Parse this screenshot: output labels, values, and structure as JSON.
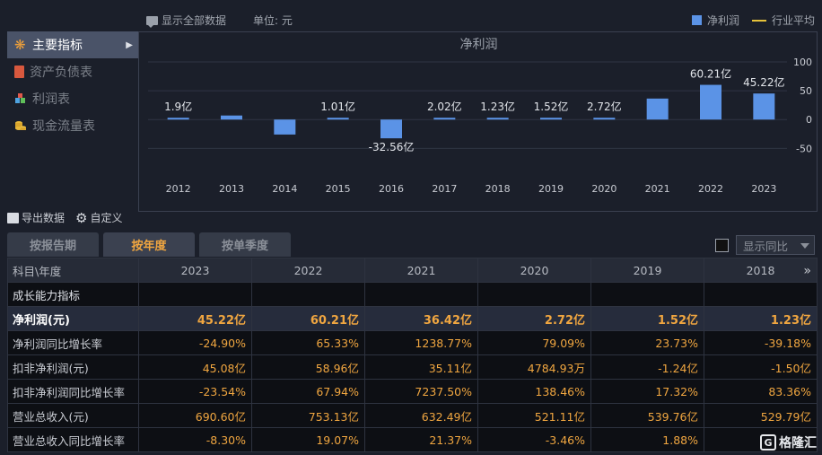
{
  "header": {
    "show_all_label": "显示全部数据",
    "unit_label": "单位: 元",
    "legend_bar": "净利润",
    "legend_line": "行业平均",
    "bar_color": "#5b93e6",
    "line_color": "#e6c23a"
  },
  "sidebar": {
    "items": [
      {
        "label": "主要指标",
        "icon": "flower-icon",
        "active": true
      },
      {
        "label": "资产负债表",
        "icon": "document-icon",
        "active": false
      },
      {
        "label": "利润表",
        "icon": "cubes-icon",
        "active": false
      },
      {
        "label": "现金流量表",
        "icon": "coins-icon",
        "active": false
      }
    ]
  },
  "chart_data": {
    "type": "bar",
    "title": "净利润",
    "categories": [
      "2012",
      "2013",
      "2014",
      "2015",
      "2016",
      "2017",
      "2018",
      "2019",
      "2020",
      "2021",
      "2022",
      "2023"
    ],
    "series": [
      {
        "name": "净利润",
        "values": [
          1.9,
          7.0,
          -26.0,
          1.01,
          -32.56,
          2.02,
          1.23,
          1.52,
          2.72,
          36.42,
          60.21,
          45.22
        ]
      }
    ],
    "data_labels": [
      "1.9亿",
      "",
      "",
      "1.01亿",
      "-32.56亿",
      "2.02亿",
      "1.23亿",
      "1.52亿",
      "2.72亿",
      "",
      "60.21亿",
      "45.22亿"
    ],
    "yticks": [
      100,
      50,
      0,
      -50
    ],
    "ylim": [
      -90,
      100
    ],
    "unit": "亿",
    "grid": true
  },
  "toolbar": {
    "export_label": "导出数据",
    "custom_label": "自定义"
  },
  "tabs": [
    {
      "label": "按报告期",
      "active": false
    },
    {
      "label": "按年度",
      "active": true
    },
    {
      "label": "按单季度",
      "active": false
    }
  ],
  "yoy": {
    "label": "显示同比"
  },
  "table": {
    "header_first": "科目\\年度",
    "years": [
      "2023",
      "2022",
      "2021",
      "2020",
      "2019",
      "2018"
    ],
    "section": "成长能力指标",
    "rows": [
      {
        "label": "净利润(元)",
        "values": [
          "45.22亿",
          "60.21亿",
          "36.42亿",
          "2.72亿",
          "1.52亿",
          "1.23亿"
        ],
        "highlight": true
      },
      {
        "label": "净利润同比增长率",
        "values": [
          "-24.90%",
          "65.33%",
          "1238.77%",
          "79.09%",
          "23.73%",
          "-39.18%"
        ]
      },
      {
        "label": "扣非净利润(元)",
        "values": [
          "45.08亿",
          "58.96亿",
          "35.11亿",
          "4784.93万",
          "-1.24亿",
          "-1.50亿"
        ]
      },
      {
        "label": "扣非净利润同比增长率",
        "values": [
          "-23.54%",
          "67.94%",
          "7237.50%",
          "138.46%",
          "17.32%",
          "83.36%"
        ]
      },
      {
        "label": "营业总收入(元)",
        "values": [
          "690.60亿",
          "753.13亿",
          "632.49亿",
          "521.11亿",
          "539.76亿",
          "529.79亿"
        ]
      },
      {
        "label": "营业总收入同比增长率",
        "values": [
          "-8.30%",
          "19.07%",
          "21.37%",
          "-3.46%",
          "1.88%",
          ""
        ]
      }
    ]
  },
  "watermark": {
    "text": "格隆汇"
  }
}
